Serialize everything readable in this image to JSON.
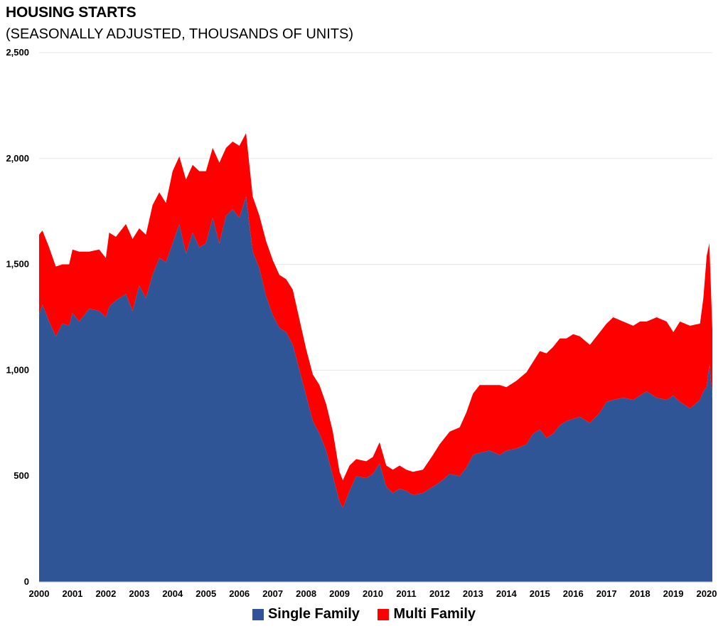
{
  "chart_data": {
    "type": "area",
    "title": "HOUSING STARTS",
    "subtitle": "(SEASONALLY ADJUSTED, THOUSANDS OF UNITS)",
    "stacked": true,
    "ylim": [
      0,
      2500
    ],
    "yticks": [
      0,
      500,
      1000,
      1500,
      2000,
      2500
    ],
    "ytick_labels": [
      "0",
      "500",
      "1,000",
      "1,500",
      "2,000",
      "2,500"
    ],
    "x_labels": [
      "2000",
      "2001",
      "2002",
      "2003",
      "2004",
      "2005",
      "2006",
      "2007",
      "2008",
      "2009",
      "2010",
      "2011",
      "2012",
      "2013",
      "2014",
      "2015",
      "2016",
      "2017",
      "2018",
      "2019",
      "2020"
    ],
    "x": [
      2000.0,
      2000.1,
      2000.3,
      2000.5,
      2000.7,
      2000.9,
      2001.0,
      2001.2,
      2001.5,
      2001.8,
      2002.0,
      2002.1,
      2002.3,
      2002.6,
      2002.8,
      2003.0,
      2003.2,
      2003.4,
      2003.6,
      2003.8,
      2004.0,
      2004.2,
      2004.4,
      2004.6,
      2004.8,
      2005.0,
      2005.2,
      2005.4,
      2005.6,
      2005.8,
      2006.0,
      2006.2,
      2006.4,
      2006.6,
      2006.8,
      2007.0,
      2007.2,
      2007.4,
      2007.6,
      2007.8,
      2008.0,
      2008.2,
      2008.4,
      2008.6,
      2008.8,
      2009.0,
      2009.1,
      2009.3,
      2009.5,
      2009.8,
      2010.0,
      2010.2,
      2010.4,
      2010.6,
      2010.8,
      2011.0,
      2011.2,
      2011.5,
      2011.8,
      2012.0,
      2012.3,
      2012.6,
      2012.8,
      2013.0,
      2013.2,
      2013.5,
      2013.8,
      2014.0,
      2014.3,
      2014.6,
      2014.8,
      2015.0,
      2015.2,
      2015.4,
      2015.6,
      2015.8,
      2016.0,
      2016.2,
      2016.5,
      2016.8,
      2017.0,
      2017.2,
      2017.5,
      2017.8,
      2018.0,
      2018.2,
      2018.5,
      2018.8,
      2019.0,
      2019.2,
      2019.5,
      2019.8,
      2019.9,
      2020.0,
      2020.08,
      2020.17
    ],
    "series": [
      {
        "name": "Single Family",
        "color": "#2F5597",
        "values": [
          1260,
          1310,
          1230,
          1160,
          1220,
          1210,
          1270,
          1230,
          1290,
          1280,
          1250,
          1300,
          1330,
          1360,
          1280,
          1400,
          1340,
          1450,
          1530,
          1510,
          1600,
          1690,
          1550,
          1650,
          1580,
          1600,
          1720,
          1600,
          1730,
          1760,
          1720,
          1820,
          1560,
          1480,
          1350,
          1260,
          1200,
          1180,
          1120,
          1000,
          880,
          760,
          700,
          620,
          500,
          380,
          350,
          430,
          500,
          490,
          510,
          560,
          450,
          420,
          440,
          430,
          410,
          420,
          450,
          470,
          510,
          500,
          540,
          600,
          610,
          620,
          600,
          620,
          630,
          650,
          700,
          720,
          680,
          700,
          740,
          760,
          770,
          780,
          750,
          800,
          850,
          860,
          870,
          860,
          880,
          900,
          870,
          860,
          880,
          850,
          820,
          860,
          900,
          920,
          1030,
          870
        ]
      },
      {
        "name": "Multi Family",
        "color": "#FF0000",
        "values": [
          380,
          350,
          350,
          330,
          280,
          290,
          300,
          330,
          270,
          290,
          280,
          350,
          300,
          330,
          340,
          270,
          300,
          330,
          310,
          280,
          340,
          320,
          350,
          320,
          360,
          340,
          330,
          380,
          320,
          320,
          340,
          300,
          260,
          250,
          260,
          260,
          250,
          250,
          260,
          240,
          220,
          220,
          230,
          220,
          210,
          140,
          130,
          120,
          80,
          80,
          80,
          100,
          100,
          110,
          110,
          100,
          110,
          110,
          150,
          180,
          200,
          230,
          260,
          290,
          320,
          310,
          330,
          300,
          320,
          340,
          340,
          370,
          400,
          410,
          410,
          390,
          400,
          380,
          370,
          380,
          370,
          390,
          360,
          350,
          350,
          330,
          380,
          370,
          300,
          380,
          390,
          360,
          440,
          620,
          570,
          320
        ]
      }
    ]
  }
}
